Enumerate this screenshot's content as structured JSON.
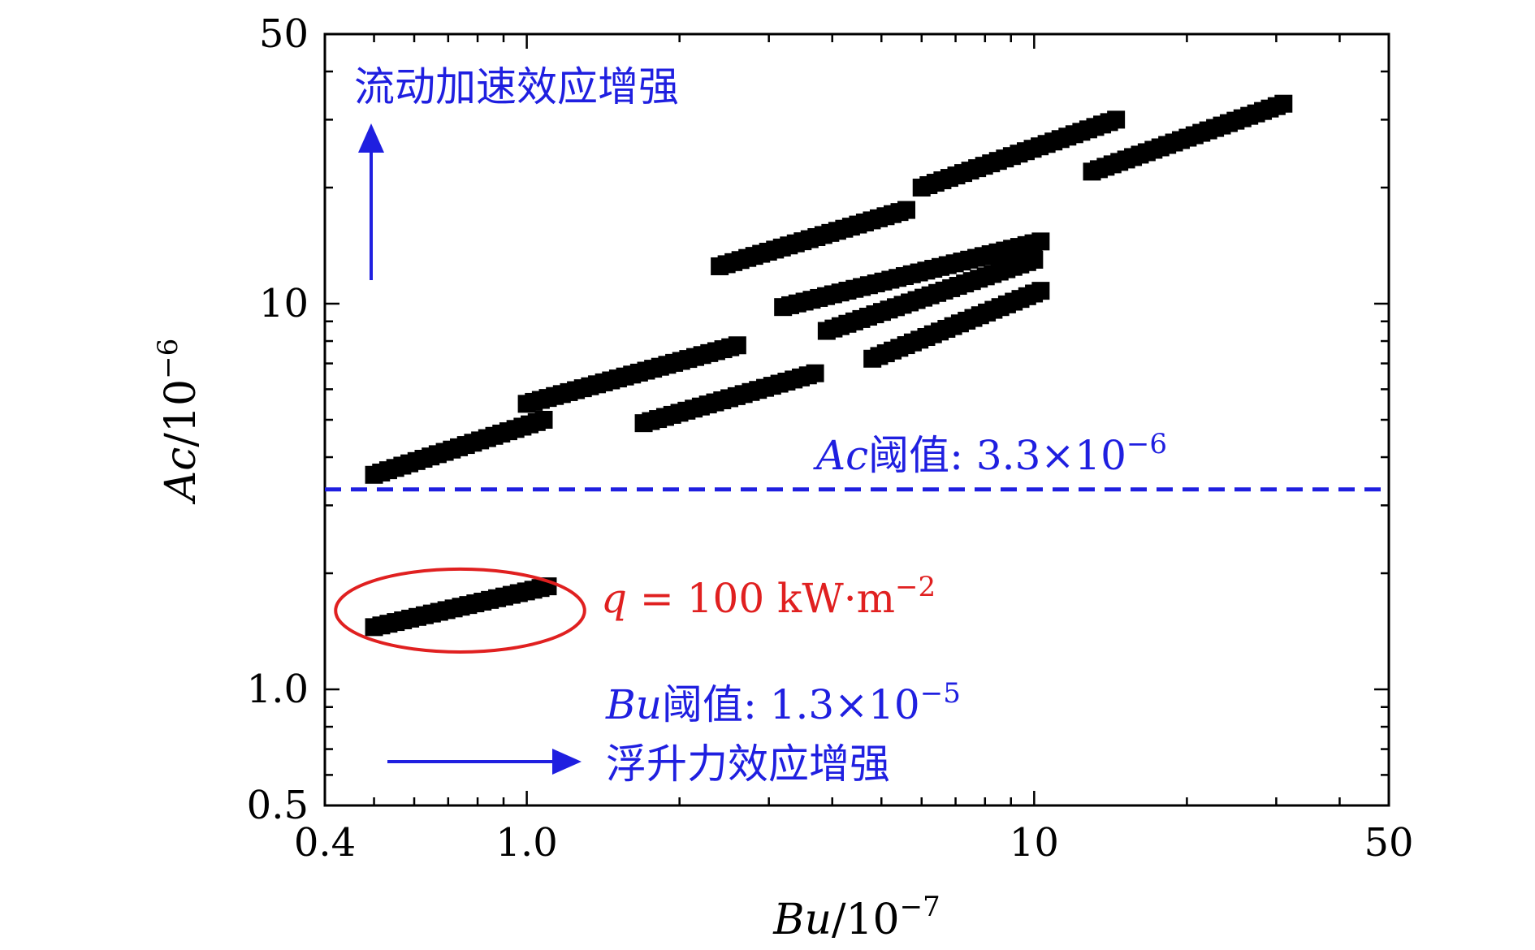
{
  "chart_data": {
    "type": "scatter",
    "title": "",
    "xlabel": "Bu/10⁻⁷",
    "ylabel": "Ac/10⁻⁶",
    "xscale": "log",
    "yscale": "log",
    "xlim": [
      0.4,
      50
    ],
    "ylim": [
      0.5,
      50
    ],
    "x_ticks": [
      {
        "value": 0.4,
        "label": "0.4"
      },
      {
        "value": 1.0,
        "label": "1.0"
      },
      {
        "value": 10,
        "label": "10"
      },
      {
        "value": 50,
        "label": "50"
      }
    ],
    "y_ticks": [
      {
        "value": 0.5,
        "label": "0.5"
      },
      {
        "value": 1.0,
        "label": "1.0"
      },
      {
        "value": 10,
        "label": "10"
      },
      {
        "value": 50,
        "label": "50"
      }
    ],
    "grid": false,
    "bands": [
      {
        "x": [
          0.5,
          1.08
        ],
        "y": [
          3.6,
          5.0
        ]
      },
      {
        "x": [
          1.0,
          2.6
        ],
        "y": [
          5.5,
          7.8
        ]
      },
      {
        "x": [
          1.7,
          3.7
        ],
        "y": [
          4.9,
          6.6
        ]
      },
      {
        "x": [
          2.4,
          5.6
        ],
        "y": [
          12.5,
          17.5
        ]
      },
      {
        "x": [
          3.2,
          10.3
        ],
        "y": [
          9.8,
          14.5
        ]
      },
      {
        "x": [
          3.9,
          10.0
        ],
        "y": [
          8.5,
          13.0
        ]
      },
      {
        "x": [
          4.8,
          10.3
        ],
        "y": [
          7.2,
          10.8
        ]
      },
      {
        "x": [
          6.0,
          14.5
        ],
        "y": [
          20.0,
          30.0
        ]
      },
      {
        "x": [
          13.0,
          31.0
        ],
        "y": [
          22.0,
          33.0
        ]
      },
      {
        "x": [
          0.5,
          1.1
        ],
        "y": [
          1.45,
          1.85
        ]
      }
    ],
    "threshold_line": {
      "y": 3.3,
      "color": "#1f1fe0",
      "style": "dashed"
    },
    "threshold_label_ac": {
      "var": "Ac",
      "mid": "阈值: 3.3×10",
      "exp": "−6"
    },
    "threshold_label_bu": {
      "var": "Bu",
      "mid": "阈值: 1.3×10",
      "exp": "−5"
    },
    "arrow_up_label": "流动加速效应增强",
    "arrow_right_label": "浮升力效应增强",
    "highlight_label": {
      "var": "q",
      "mid": " = 100 kW·m",
      "exp": "−2"
    },
    "highlight_ellipse": {
      "x": [
        0.42,
        1.3
      ],
      "y": [
        1.25,
        2.05
      ],
      "color": "#e02020"
    },
    "colors": {
      "data": "#000000",
      "annotation": "#1f1fe0",
      "highlight": "#e02020"
    }
  }
}
